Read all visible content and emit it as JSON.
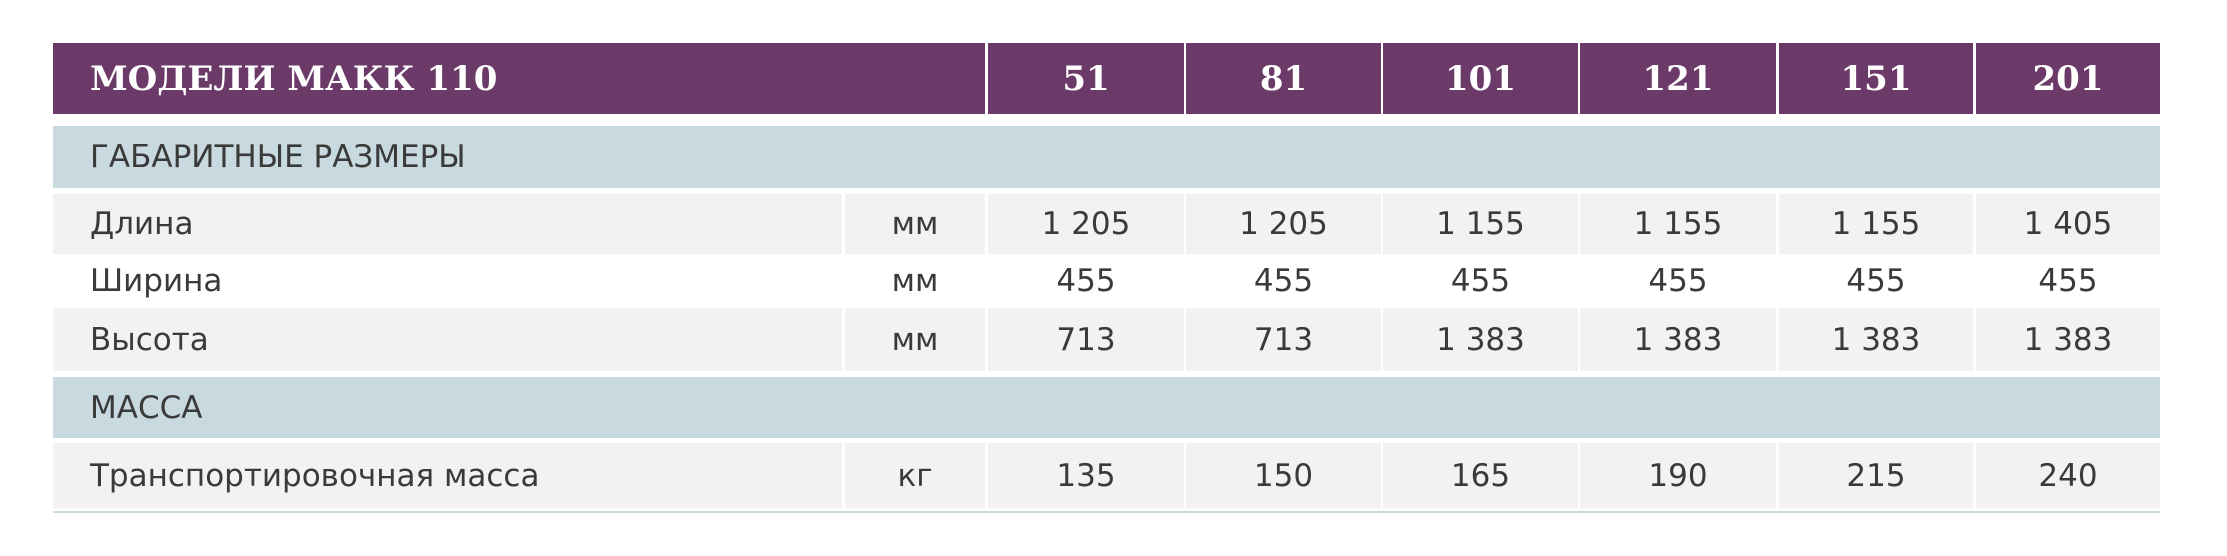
{
  "header": {
    "title": "МОДЕЛИ МАКК 110",
    "models": [
      "51",
      "81",
      "101",
      "121",
      "151",
      "201"
    ]
  },
  "sections": [
    {
      "title": "ГАБАРИТНЫЕ РАЗМЕРЫ",
      "rows": [
        {
          "label": "Длина",
          "unit": "мм",
          "values": [
            "1 205",
            "1 205",
            "1 155",
            "1 155",
            "1 155",
            "1 405"
          ]
        },
        {
          "label": "Ширина",
          "unit": "мм",
          "values": [
            "455",
            "455",
            "455",
            "455",
            "455",
            "455"
          ]
        },
        {
          "label": "Высота",
          "unit": "мм",
          "values": [
            "713",
            "713",
            "1 383",
            "1 383",
            "1 383",
            "1 383"
          ]
        }
      ]
    },
    {
      "title": "МАССА",
      "rows": [
        {
          "label": "Транспортировочная масса",
          "unit": "кг",
          "values": [
            "135",
            "150",
            "165",
            "190",
            "215",
            "240"
          ]
        }
      ]
    }
  ]
}
